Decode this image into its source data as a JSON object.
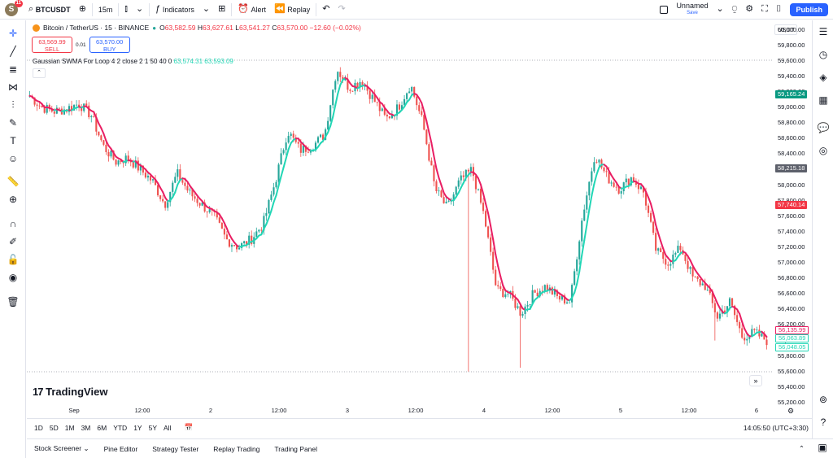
{
  "topbar": {
    "avatar_letter": "S",
    "avatar_badge": "11",
    "symbol": "BTCUSDT",
    "interval": "15m",
    "indicators": "Indicators",
    "alert": "Alert",
    "replay": "Replay",
    "layout_name": "Unnamed",
    "layout_status": "Save",
    "publish": "Publish"
  },
  "legend": {
    "pair": "Bitcoin / TetherUS · 15 · BINANCE",
    "o": "63,582.59",
    "h": "63,627.61",
    "l": "63,541.27",
    "c": "63,570.00",
    "change": "−12.60 (−0.02%)",
    "sell_price": "63,569.99",
    "sell_label": "SELL",
    "spread": "0.01",
    "buy_price": "63,570.00",
    "buy_label": "BUY",
    "indicator_name": "Gaussian SWMA For Loop 4 2 close 2 1 50 40 0",
    "ind_v1": "63,574.31",
    "ind_v2": "63,593.09"
  },
  "yaxis": {
    "currency": "USDT",
    "labels": [
      "60,000.00",
      "59,800.00",
      "59,600.00",
      "59,400.00",
      "59,200.00",
      "59,000.00",
      "58,800.00",
      "58,600.00",
      "58,400.00",
      "58,200.00",
      "58,000.00",
      "57,800.00",
      "57,600.00",
      "57,400.00",
      "57,200.00",
      "57,000.00",
      "56,800.00",
      "56,600.00",
      "56,400.00",
      "56,200.00",
      "56,000.00",
      "55,800.00",
      "55,600.00",
      "55,400.00",
      "55,200.00"
    ],
    "flag_high": "59,165.24",
    "flag_crosshair": "58,215.18",
    "flag_red": "57,740.14",
    "flag_pink": "56,135.99",
    "flag_teal1": "56,063.89",
    "flag_teal2": "56,048.05"
  },
  "xaxis": {
    "labels": [
      "Sep",
      "12:00",
      "2",
      "12:00",
      "3",
      "12:00",
      "4",
      "12:00",
      "5",
      "12:00",
      "6"
    ]
  },
  "brand": "TradingView",
  "ranges": [
    "1D",
    "5D",
    "1M",
    "3M",
    "6M",
    "YTD",
    "1Y",
    "5Y",
    "All"
  ],
  "clock": "14:05:50 (UTC+3:30)",
  "bottom_tabs": [
    "Stock Screener",
    "Pine Editor",
    "Strategy Tester",
    "Replay Trading",
    "Trading Panel"
  ],
  "colors": {
    "up": "#26a69a",
    "down": "#ef5350",
    "swma_bull": "#21d6b5",
    "swma_bear": "#e91e63",
    "accent": "#2962ff"
  },
  "chart_data": {
    "type": "candlestick",
    "symbol": "BTCUSDT",
    "interval": "15m",
    "ylim": [
      55200,
      60100
    ],
    "x_ticks": [
      "Sep",
      "12:00",
      "2",
      "12:00",
      "3",
      "12:00",
      "4",
      "12:00",
      "5",
      "12:00",
      "6"
    ],
    "path_close": [
      59150,
      59000,
      58950,
      58980,
      59050,
      58900,
      58500,
      58300,
      58350,
      58200,
      58050,
      57750,
      58150,
      57900,
      57750,
      57600,
      57300,
      57200,
      57300,
      57500,
      58050,
      58700,
      58450,
      58500,
      58650,
      59500,
      59250,
      59350,
      59100,
      58850,
      59000,
      59300,
      58800,
      57950,
      57700,
      58050,
      58200,
      57600,
      56650,
      56600,
      56350,
      56600,
      56700,
      56550,
      56500,
      57600,
      58400,
      58100,
      57950,
      58100,
      57900,
      57150,
      57000,
      57200,
      56800,
      56700,
      56300,
      56500,
      56050,
      56100,
      56000
    ]
  }
}
